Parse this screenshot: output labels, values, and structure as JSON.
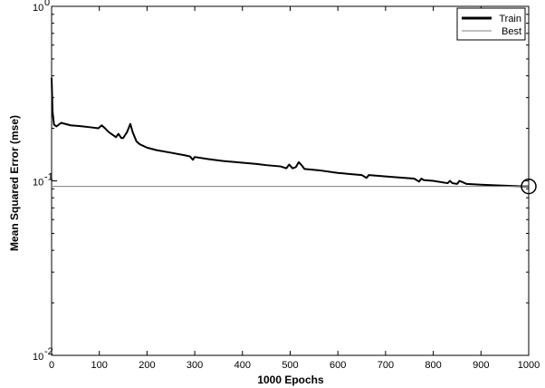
{
  "chart_data": {
    "type": "line",
    "title": "",
    "xlabel": "1000 Epochs",
    "ylabel": "Mean Squared Error  (mse)",
    "xlim": [
      0,
      1000
    ],
    "ylim": [
      0.01,
      1
    ],
    "yscale": "log",
    "grid": false,
    "legend_position": "top-right",
    "x_ticks": [
      0,
      100,
      200,
      300,
      400,
      500,
      600,
      700,
      800,
      900,
      1000
    ],
    "x_tick_labels": [
      "0",
      "100",
      "200",
      "300",
      "400",
      "500",
      "600",
      "700",
      "800",
      "900",
      "1000"
    ],
    "y_ticks": [
      0.01,
      0.1,
      1
    ],
    "y_tick_labels": [
      {
        "base": "10",
        "exp": "-2"
      },
      {
        "base": "10",
        "exp": "-1"
      },
      {
        "base": "10",
        "exp": "0"
      }
    ],
    "series": [
      {
        "name": "Train",
        "color": "#000000",
        "x": [
          0,
          2,
          5,
          10,
          20,
          40,
          60,
          80,
          98,
          105,
          112,
          120,
          135,
          140,
          146,
          150,
          158,
          165,
          170,
          178,
          185,
          200,
          220,
          250,
          280,
          290,
          296,
          300,
          330,
          360,
          400,
          430,
          450,
          480,
          492,
          498,
          505,
          512,
          518,
          525,
          530,
          560,
          600,
          650,
          660,
          665,
          700,
          740,
          760,
          770,
          775,
          780,
          800,
          830,
          835,
          840,
          850,
          855,
          870,
          900,
          940,
          990,
          1000
        ],
        "y": [
          0.39,
          0.25,
          0.21,
          0.205,
          0.215,
          0.208,
          0.206,
          0.203,
          0.2,
          0.208,
          0.2,
          0.19,
          0.178,
          0.186,
          0.176,
          0.176,
          0.19,
          0.212,
          0.19,
          0.168,
          0.162,
          0.155,
          0.15,
          0.145,
          0.14,
          0.138,
          0.132,
          0.137,
          0.133,
          0.13,
          0.127,
          0.125,
          0.123,
          0.121,
          0.118,
          0.124,
          0.118,
          0.12,
          0.128,
          0.122,
          0.117,
          0.115,
          0.111,
          0.108,
          0.104,
          0.108,
          0.106,
          0.104,
          0.103,
          0.099,
          0.103,
          0.101,
          0.1,
          0.097,
          0.1,
          0.097,
          0.096,
          0.1,
          0.096,
          0.095,
          0.094,
          0.093,
          0.093
        ]
      },
      {
        "name": "Best",
        "color": "#808080",
        "x": [
          0,
          1000
        ],
        "y": [
          0.093,
          0.093
        ]
      }
    ],
    "annotations": [
      {
        "type": "best-marker-circle",
        "x": 1000,
        "y": 0.093
      }
    ]
  }
}
